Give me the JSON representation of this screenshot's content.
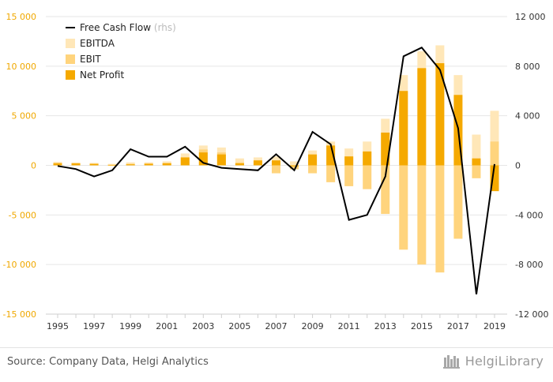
{
  "chart_data": {
    "type": "bar",
    "x": [
      1995,
      1996,
      1997,
      1998,
      1999,
      2000,
      2001,
      2002,
      2003,
      2004,
      2005,
      2006,
      2007,
      2008,
      2009,
      2010,
      2011,
      2012,
      2013,
      2014,
      2015,
      2016,
      2017,
      2018,
      2019
    ],
    "x_tick_labels": [
      "1995",
      "1997",
      "1999",
      "2001",
      "2003",
      "2005",
      "2007",
      "2009",
      "2011",
      "2013",
      "2015",
      "2017",
      "2019"
    ],
    "left_axis": {
      "ylim": [
        -15000,
        15000
      ],
      "ticks": [
        -15000,
        -10000,
        -5000,
        0,
        5000,
        10000,
        15000
      ],
      "tick_labels": [
        "-15 000",
        "-10 000",
        "-5 000",
        "0",
        "5 000",
        "10 000",
        "15 000"
      ],
      "label_color": "#f0a800"
    },
    "right_axis": {
      "ylim": [
        -12000,
        12000
      ],
      "ticks": [
        -12000,
        -8000,
        -4000,
        0,
        4000,
        8000,
        12000
      ],
      "tick_labels": [
        "-12 000",
        "-8 000",
        "-4 000",
        "0",
        "4 000",
        "8 000",
        "12 000"
      ]
    },
    "grid": true,
    "legend": {
      "position": "top-left",
      "items": [
        {
          "label": "Free Cash Flow",
          "suffix": "(rhs)",
          "kind": "line",
          "color": "#000000"
        },
        {
          "label": "EBITDA",
          "kind": "bar",
          "color": "#ffe7b8"
        },
        {
          "label": "EBIT",
          "kind": "bar",
          "color": "#ffd47d"
        },
        {
          "label": "Net Profit",
          "kind": "bar",
          "color": "#f5a900"
        }
      ]
    },
    "series": [
      {
        "name": "EBITDA",
        "axis": "left",
        "color": "#ffe7b8",
        "values": [
          350,
          300,
          250,
          150,
          300,
          300,
          400,
          1200,
          2000,
          1800,
          700,
          800,
          900,
          400,
          1500,
          2400,
          1700,
          2400,
          4700,
          9100,
          11500,
          12100,
          9100,
          3100,
          5500
        ]
      },
      {
        "name": "EBIT",
        "axis": "left",
        "color": "#ffd47d",
        "values": [
          250,
          200,
          150,
          -50,
          150,
          200,
          250,
          800,
          1600,
          1300,
          300,
          400,
          -800,
          -400,
          -800,
          -1700,
          -2100,
          -2400,
          -4900,
          -8500,
          -10000,
          -10800,
          -7400,
          -1300,
          2400
        ]
      },
      {
        "name": "Net Profit",
        "axis": "left",
        "color": "#f5a900",
        "values": [
          200,
          200,
          150,
          50,
          100,
          150,
          200,
          800,
          1300,
          1100,
          200,
          500,
          500,
          -100,
          1100,
          2000,
          900,
          1400,
          3300,
          7500,
          9800,
          10300,
          7100,
          700,
          -2600
        ]
      },
      {
        "name": "Free Cash Flow",
        "axis": "right",
        "kind": "line",
        "color": "#000000",
        "values": [
          -50,
          -300,
          -900,
          -400,
          1300,
          700,
          700,
          1500,
          200,
          -200,
          -300,
          -400,
          900,
          -400,
          2700,
          1700,
          -4400,
          -4000,
          -900,
          8800,
          9500,
          7700,
          3000,
          -10400,
          100
        ]
      }
    ]
  },
  "footer": {
    "source": "Source: Company Data, Helgi Analytics",
    "brand": "HelgiLibrary"
  }
}
